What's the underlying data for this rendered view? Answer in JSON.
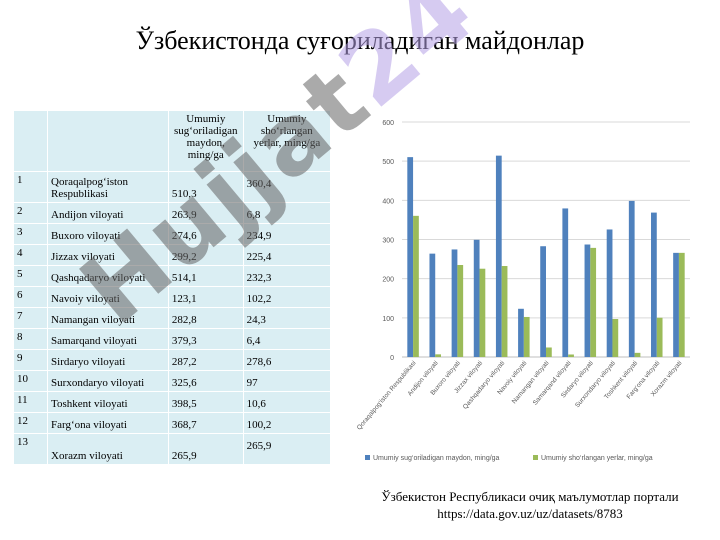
{
  "title": "Ўзбекистонда суғориладиган майдонлар",
  "table": {
    "headers": [
      "",
      "",
      "Umumiy sug‘oriladigan maydon, ming/ga",
      "Umumiy sho‘rlangan yerlar, ming/ga"
    ],
    "rows": [
      {
        "n": "1",
        "region": "Qoraqalpog‘iston Respublikasi",
        "area": "510,3",
        "saline": "360,4"
      },
      {
        "n": "2",
        "region": "Andijon viloyati",
        "area": "263,9",
        "saline": "6,8"
      },
      {
        "n": "3",
        "region": "Buxoro viloyati",
        "area": "274,6",
        "saline": "234,9"
      },
      {
        "n": "4",
        "region": "Jizzax viloyati",
        "area": "299,2",
        "saline": "225,4"
      },
      {
        "n": "5",
        "region": "Qashqadaryo viloyati",
        "area": "514,1",
        "saline": "232,3"
      },
      {
        "n": "6",
        "region": "Navoiy viloyati",
        "area": "123,1",
        "saline": "102,2"
      },
      {
        "n": "7",
        "region": "Namangan viloyati",
        "area": "282,8",
        "saline": "24,3"
      },
      {
        "n": "8",
        "region": "Samarqand viloyati",
        "area": "379,3",
        "saline": "6,4"
      },
      {
        "n": "9",
        "region": "Sirdaryo viloyati",
        "area": "287,2",
        "saline": "278,6"
      },
      {
        "n": "10",
        "region": "Surxondaryo viloyati",
        "area": "325,6",
        "saline": "97"
      },
      {
        "n": "11",
        "region": "Toshkent viloyati",
        "area": "398,5",
        "saline": "10,6"
      },
      {
        "n": "12",
        "region": "Farg‘ona viloyati",
        "area": "368,7",
        "saline": "100,2"
      },
      {
        "n": "13",
        "region": "Xorazm viloyati",
        "area": "265,9",
        "saline": "265,9"
      }
    ]
  },
  "watermark": {
    "part1": "Hujjat",
    "part2": "24"
  },
  "source": {
    "line1": "Ўзбекистон Республикаси очиқ маълумотлар портали",
    "line2": "https://data.gov.uz/uz/datasets/8783"
  },
  "colors": {
    "series1": "#4f81bd",
    "series2": "#9bbb59",
    "table_bg": "#daeef3"
  },
  "chart_data": {
    "type": "bar",
    "categories": [
      "Qoraqalpog‘iston Respublikasi",
      "Andijon viloyati",
      "Buxoro viloyati",
      "Jizzax viloyati",
      "Qashqadaryo viloyati",
      "Navoiy viloyati",
      "Namangan viloyati",
      "Samarqand viloyati",
      "Sirdaryo viloyati",
      "Surxondaryo viloyati",
      "Toshkent viloyati",
      "Farg‘ona viloyati",
      "Xorazm viloyati"
    ],
    "series": [
      {
        "name": "Umumiy sug‘oriladigan maydon, ming/ga",
        "values": [
          510.3,
          263.9,
          274.6,
          299.2,
          514.1,
          123.1,
          282.8,
          379.3,
          287.2,
          325.6,
          398.5,
          368.7,
          265.9
        ]
      },
      {
        "name": "Umumiy sho‘rlangan yerlar, ming/ga",
        "values": [
          360.4,
          6.8,
          234.9,
          225.4,
          232.3,
          102.2,
          24.3,
          6.4,
          278.6,
          97,
          10.6,
          100.2,
          265.9
        ]
      }
    ],
    "ylim": [
      0,
      600
    ],
    "yticks": [
      0,
      100,
      200,
      300,
      400,
      500,
      600
    ],
    "grid": true,
    "legend": "bottom"
  }
}
